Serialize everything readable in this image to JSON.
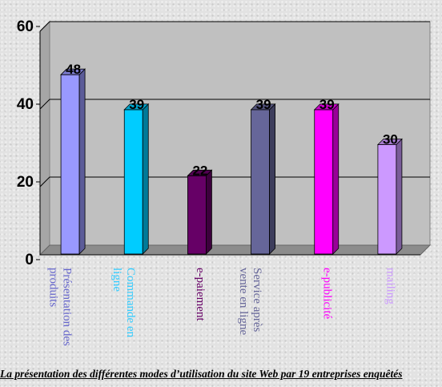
{
  "chart_data": {
    "type": "bar",
    "title": "La présentation des différentes modes d’utilisation du site Web par 19 entreprises enquêtés",
    "categories": [
      [
        "Présentation des",
        "produits"
      ],
      [
        "Commande en",
        "ligne"
      ],
      [
        "e-paiement"
      ],
      [
        "Service après",
        "vente en ligne"
      ],
      [
        "e-publicité"
      ],
      [
        "mailing"
      ]
    ],
    "values": [
      48,
      39,
      22,
      39,
      39,
      30
    ],
    "colors": [
      "#9999ff",
      "#00ccff",
      "#660066",
      "#666699",
      "#ff00ff",
      "#cc99ff"
    ],
    "label_colors": [
      "#6666cc",
      "#33ccff",
      "#660066",
      "#666699",
      "#ff00ff",
      "#cc99ff"
    ],
    "ylim": [
      0,
      60
    ],
    "yticks": [
      "0",
      "20",
      "40",
      "60"
    ],
    "grid": true,
    "three_d": true
  }
}
